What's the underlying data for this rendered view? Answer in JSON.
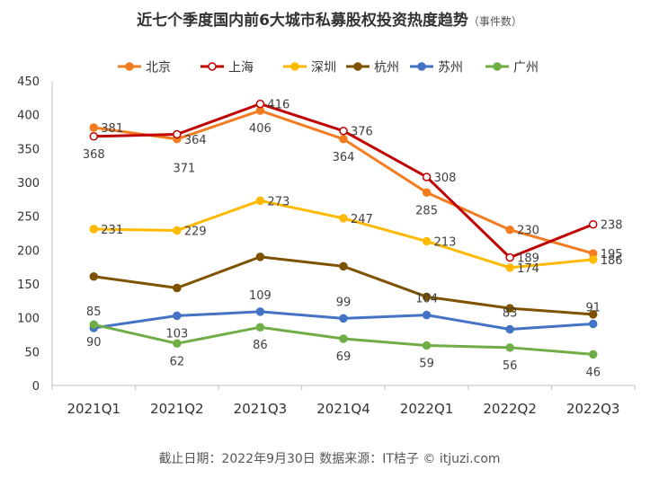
{
  "chart_data": {
    "type": "line",
    "title": "近七个季度国内前6大城市私募股权投资热度趋势",
    "subtitle": "（事件数）",
    "categories": [
      "2021Q1",
      "2021Q2",
      "2021Q3",
      "2021Q4",
      "2022Q1",
      "2022Q2",
      "2022Q3"
    ],
    "y_ticks": [
      0,
      50,
      100,
      150,
      200,
      250,
      300,
      350,
      400,
      450
    ],
    "ylim": [
      0,
      450
    ],
    "grid": false,
    "legend_position": "top",
    "series": [
      {
        "name": "北京",
        "color": "#F47C20",
        "marker": "filled",
        "values": [
          381,
          364,
          406,
          364,
          285,
          230,
          195
        ]
      },
      {
        "name": "上海",
        "color": "#C00000",
        "marker": "hollow",
        "values": [
          368,
          371,
          416,
          376,
          308,
          189,
          238
        ]
      },
      {
        "name": "深圳",
        "color": "#FFB900",
        "marker": "filled",
        "values": [
          231,
          229,
          273,
          247,
          213,
          174,
          186
        ]
      },
      {
        "name": "杭州",
        "color": "#7F5200",
        "marker": "filled",
        "values": [
          161,
          144,
          190,
          176,
          131,
          114,
          105
        ]
      },
      {
        "name": "苏州",
        "color": "#4472C4",
        "marker": "filled",
        "values": [
          85,
          103,
          109,
          99,
          104,
          83,
          91
        ]
      },
      {
        "name": "广州",
        "color": "#70AD47",
        "marker": "filled",
        "values": [
          90,
          62,
          86,
          69,
          59,
          56,
          46
        ]
      }
    ],
    "data_labels": [
      {
        "series": "北京",
        "index": 0,
        "text": "381",
        "side": "right"
      },
      {
        "series": "上海",
        "index": 0,
        "text": "368",
        "side": "below"
      },
      {
        "series": "北京",
        "index": 1,
        "text": "364",
        "side": "right"
      },
      {
        "series": "上海",
        "index": 1,
        "text": "371",
        "side": "below-far"
      },
      {
        "series": "北京",
        "index": 2,
        "text": "406",
        "side": "below"
      },
      {
        "series": "上海",
        "index": 2,
        "text": "416",
        "side": "right"
      },
      {
        "series": "北京",
        "index": 3,
        "text": "364",
        "side": "below"
      },
      {
        "series": "上海",
        "index": 3,
        "text": "376",
        "side": "right"
      },
      {
        "series": "北京",
        "index": 4,
        "text": "285",
        "side": "below"
      },
      {
        "series": "上海",
        "index": 4,
        "text": "308",
        "side": "right"
      },
      {
        "series": "北京",
        "index": 5,
        "text": "230",
        "side": "right"
      },
      {
        "series": "上海",
        "index": 5,
        "text": "189",
        "side": "right"
      },
      {
        "series": "北京",
        "index": 6,
        "text": "195",
        "side": "right"
      },
      {
        "series": "上海",
        "index": 6,
        "text": "238",
        "side": "right"
      },
      {
        "series": "深圳",
        "index": 0,
        "text": "231",
        "side": "right"
      },
      {
        "series": "深圳",
        "index": 1,
        "text": "229",
        "side": "right"
      },
      {
        "series": "深圳",
        "index": 2,
        "text": "273",
        "side": "right"
      },
      {
        "series": "深圳",
        "index": 3,
        "text": "247",
        "side": "right"
      },
      {
        "series": "深圳",
        "index": 4,
        "text": "213",
        "side": "right"
      },
      {
        "series": "深圳",
        "index": 5,
        "text": "174",
        "side": "right"
      },
      {
        "series": "深圳",
        "index": 6,
        "text": "186",
        "side": "right"
      },
      {
        "series": "苏州",
        "index": 0,
        "text": "85",
        "side": "above"
      },
      {
        "series": "苏州",
        "index": 1,
        "text": "103",
        "side": "below"
      },
      {
        "series": "苏州",
        "index": 2,
        "text": "109",
        "side": "above"
      },
      {
        "series": "苏州",
        "index": 3,
        "text": "99",
        "side": "above"
      },
      {
        "series": "苏州",
        "index": 4,
        "text": "104",
        "side": "above"
      },
      {
        "series": "苏州",
        "index": 5,
        "text": "83",
        "side": "above"
      },
      {
        "series": "苏州",
        "index": 6,
        "text": "91",
        "side": "above"
      },
      {
        "series": "广州",
        "index": 0,
        "text": "90",
        "side": "below"
      },
      {
        "series": "广州",
        "index": 1,
        "text": "62",
        "side": "below"
      },
      {
        "series": "广州",
        "index": 2,
        "text": "86",
        "side": "below"
      },
      {
        "series": "广州",
        "index": 3,
        "text": "69",
        "side": "below"
      },
      {
        "series": "广州",
        "index": 4,
        "text": "59",
        "side": "below"
      },
      {
        "series": "广州",
        "index": 5,
        "text": "56",
        "side": "below"
      },
      {
        "series": "广州",
        "index": 6,
        "text": "46",
        "side": "below"
      }
    ]
  },
  "footer": "截止日期：2022年9月30日    数据来源：IT桔子 © itjuzi.com",
  "colors": {
    "axis": "#BFBFBF",
    "tick_text": "#333333",
    "label_text": "#404040"
  }
}
